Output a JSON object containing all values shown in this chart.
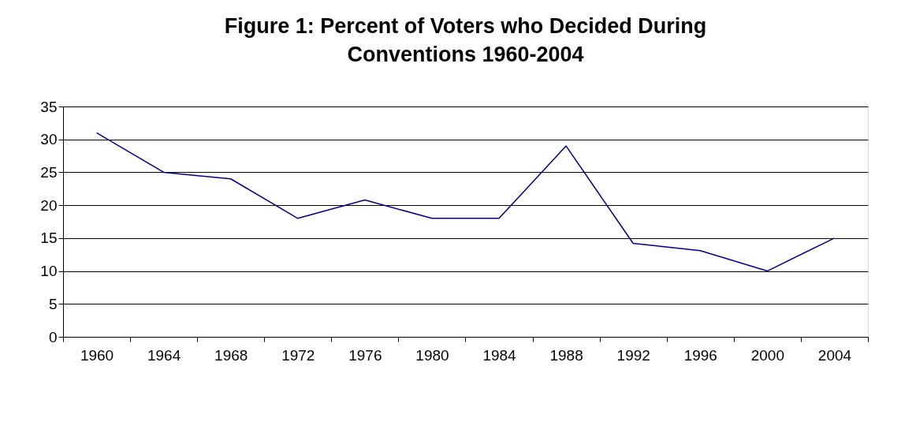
{
  "chart_data": {
    "type": "line",
    "title": "Figure 1: Percent of Voters who Decided During Conventions 1960-2004",
    "categories": [
      "1960",
      "1964",
      "1968",
      "1972",
      "1976",
      "1980",
      "1984",
      "1988",
      "1992",
      "1996",
      "2000",
      "2004"
    ],
    "series": [
      {
        "color": "#000080",
        "values": [
          31,
          25,
          24,
          18,
          20.8,
          18,
          18,
          29,
          14.2,
          13.1,
          10,
          15
        ]
      }
    ],
    "ylim": [
      0,
      35
    ],
    "yticks": [
      0,
      5,
      10,
      15,
      20,
      25,
      30,
      35
    ],
    "grid": "y",
    "legend": false,
    "marker": "none",
    "line_style": "solid"
  }
}
